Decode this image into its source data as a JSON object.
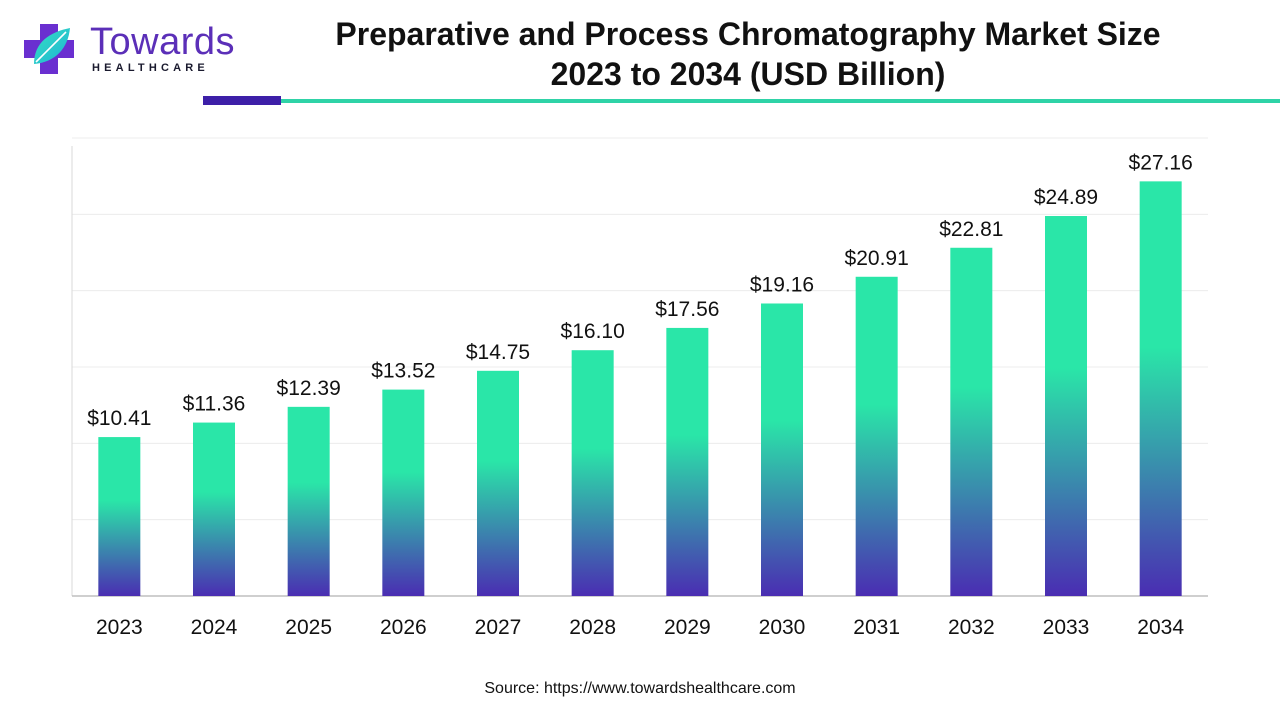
{
  "logo": {
    "word": "Towards",
    "sub": "HEALTHCARE"
  },
  "header": {
    "title_line1": "Preparative and Process Chromatography Market Size",
    "title_line2": "2023 to 2034 (USD Billion)"
  },
  "colors": {
    "bar_top": "#2ae6a8",
    "bar_bottom": "#4a2db2",
    "accent_purple": "#3d1fa8",
    "accent_teal": "#2fd3a7"
  },
  "chart_data": {
    "type": "bar",
    "categories": [
      "2023",
      "2024",
      "2025",
      "2026",
      "2027",
      "2028",
      "2029",
      "2030",
      "2031",
      "2032",
      "2033",
      "2034"
    ],
    "values": [
      10.41,
      11.36,
      12.39,
      13.52,
      14.75,
      16.1,
      17.56,
      19.16,
      20.91,
      22.81,
      24.89,
      27.16
    ],
    "value_labels": [
      "$10.41",
      "$11.36",
      "$12.39",
      "$13.52",
      "$14.75",
      "$16.10",
      "$17.56",
      "$19.16",
      "$20.91",
      "$22.81",
      "$24.89",
      "$27.16"
    ],
    "ylim": [
      0,
      30
    ],
    "grid": true,
    "legend": "none"
  },
  "footer": {
    "source": "Source: https://www.towardshealthcare.com"
  }
}
